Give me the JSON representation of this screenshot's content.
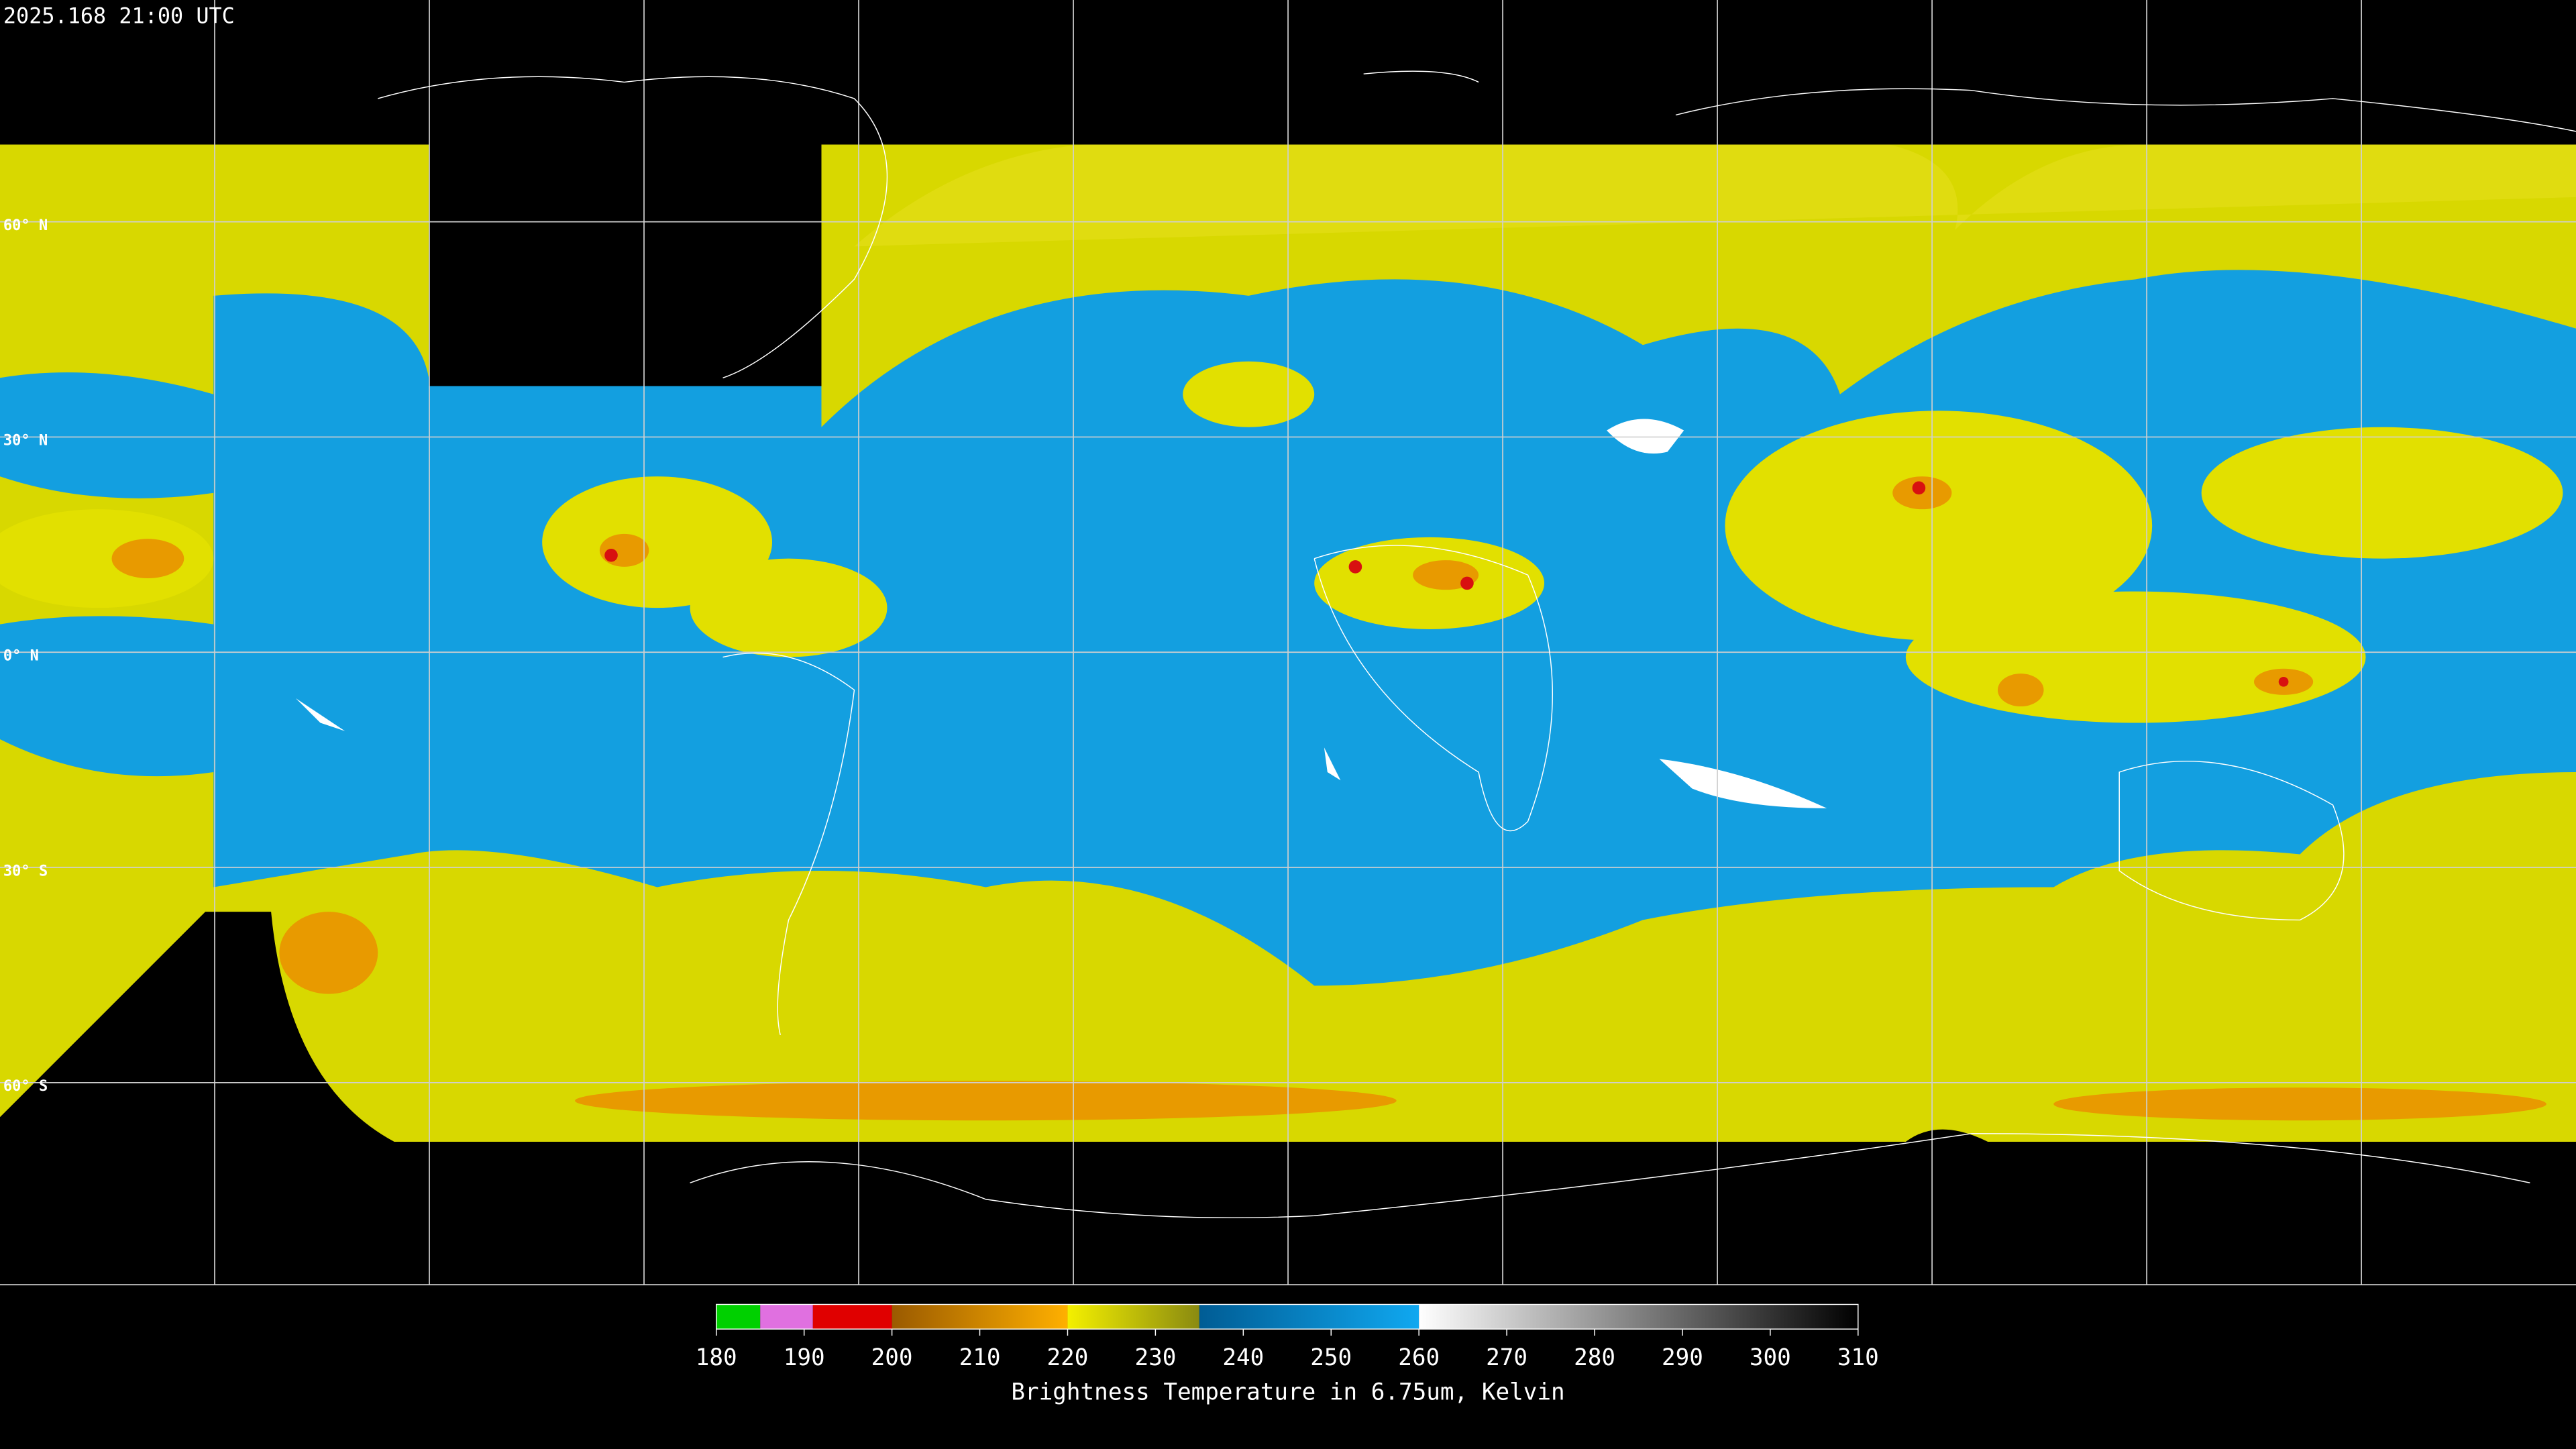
{
  "header": {
    "timestamp": "2025.168 21:00 UTC"
  },
  "map": {
    "latitude_labels": [
      "60° N",
      "30° N",
      "0° N",
      "30° S",
      "60° S"
    ]
  },
  "colorbar": {
    "ticks": [
      180,
      190,
      200,
      210,
      220,
      230,
      240,
      250,
      260,
      270,
      280,
      290,
      300,
      310
    ],
    "label": "Brightness Temperature in 6.75um, Kelvin"
  }
}
